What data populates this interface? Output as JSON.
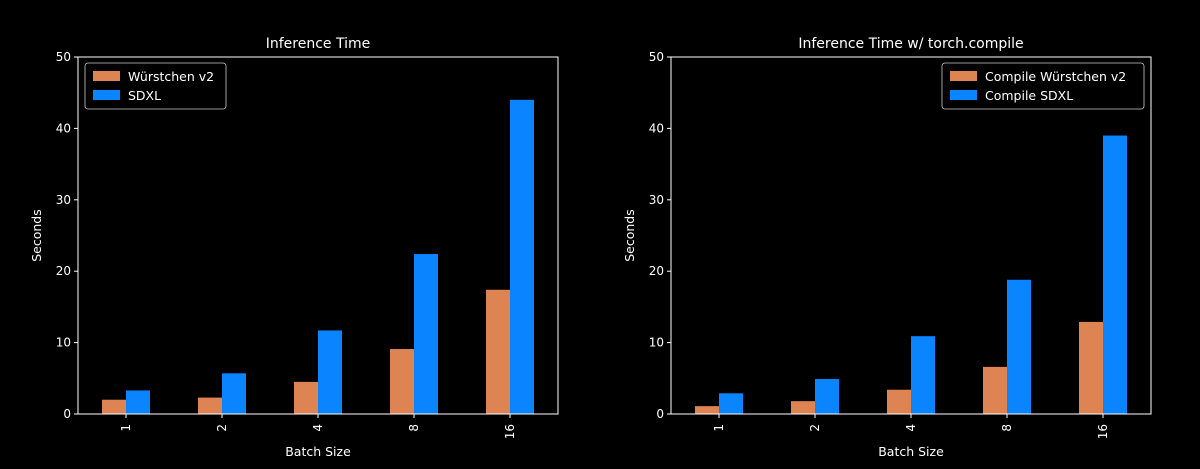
{
  "chart_data": [
    {
      "type": "bar",
      "title": "Inference Time",
      "xlabel": "Batch Size",
      "ylabel": "Seconds",
      "ylim": [
        0,
        50
      ],
      "yticks": [
        0,
        10,
        20,
        30,
        40,
        50
      ],
      "categories": [
        "1",
        "2",
        "4",
        "8",
        "16"
      ],
      "legend_position": "top-left",
      "series": [
        {
          "name": "Würstchen v2",
          "color": "#dd8452",
          "values": [
            2.0,
            2.3,
            4.5,
            9.1,
            17.4
          ]
        },
        {
          "name": "SDXL",
          "color": "#0a84ff",
          "values": [
            3.3,
            5.7,
            11.7,
            22.4,
            44.0
          ]
        }
      ]
    },
    {
      "type": "bar",
      "title": "Inference Time w/ torch.compile",
      "xlabel": "Batch Size",
      "ylabel": "Seconds",
      "ylim": [
        0,
        50
      ],
      "yticks": [
        0,
        10,
        20,
        30,
        40,
        50
      ],
      "categories": [
        "1",
        "2",
        "4",
        "8",
        "16"
      ],
      "legend_position": "top-right",
      "series": [
        {
          "name": "Compile Würstchen v2",
          "color": "#dd8452",
          "values": [
            1.1,
            1.8,
            3.4,
            6.6,
            12.9
          ]
        },
        {
          "name": "Compile SDXL",
          "color": "#0a84ff",
          "values": [
            2.9,
            4.9,
            10.9,
            18.8,
            39.0
          ]
        }
      ]
    }
  ]
}
